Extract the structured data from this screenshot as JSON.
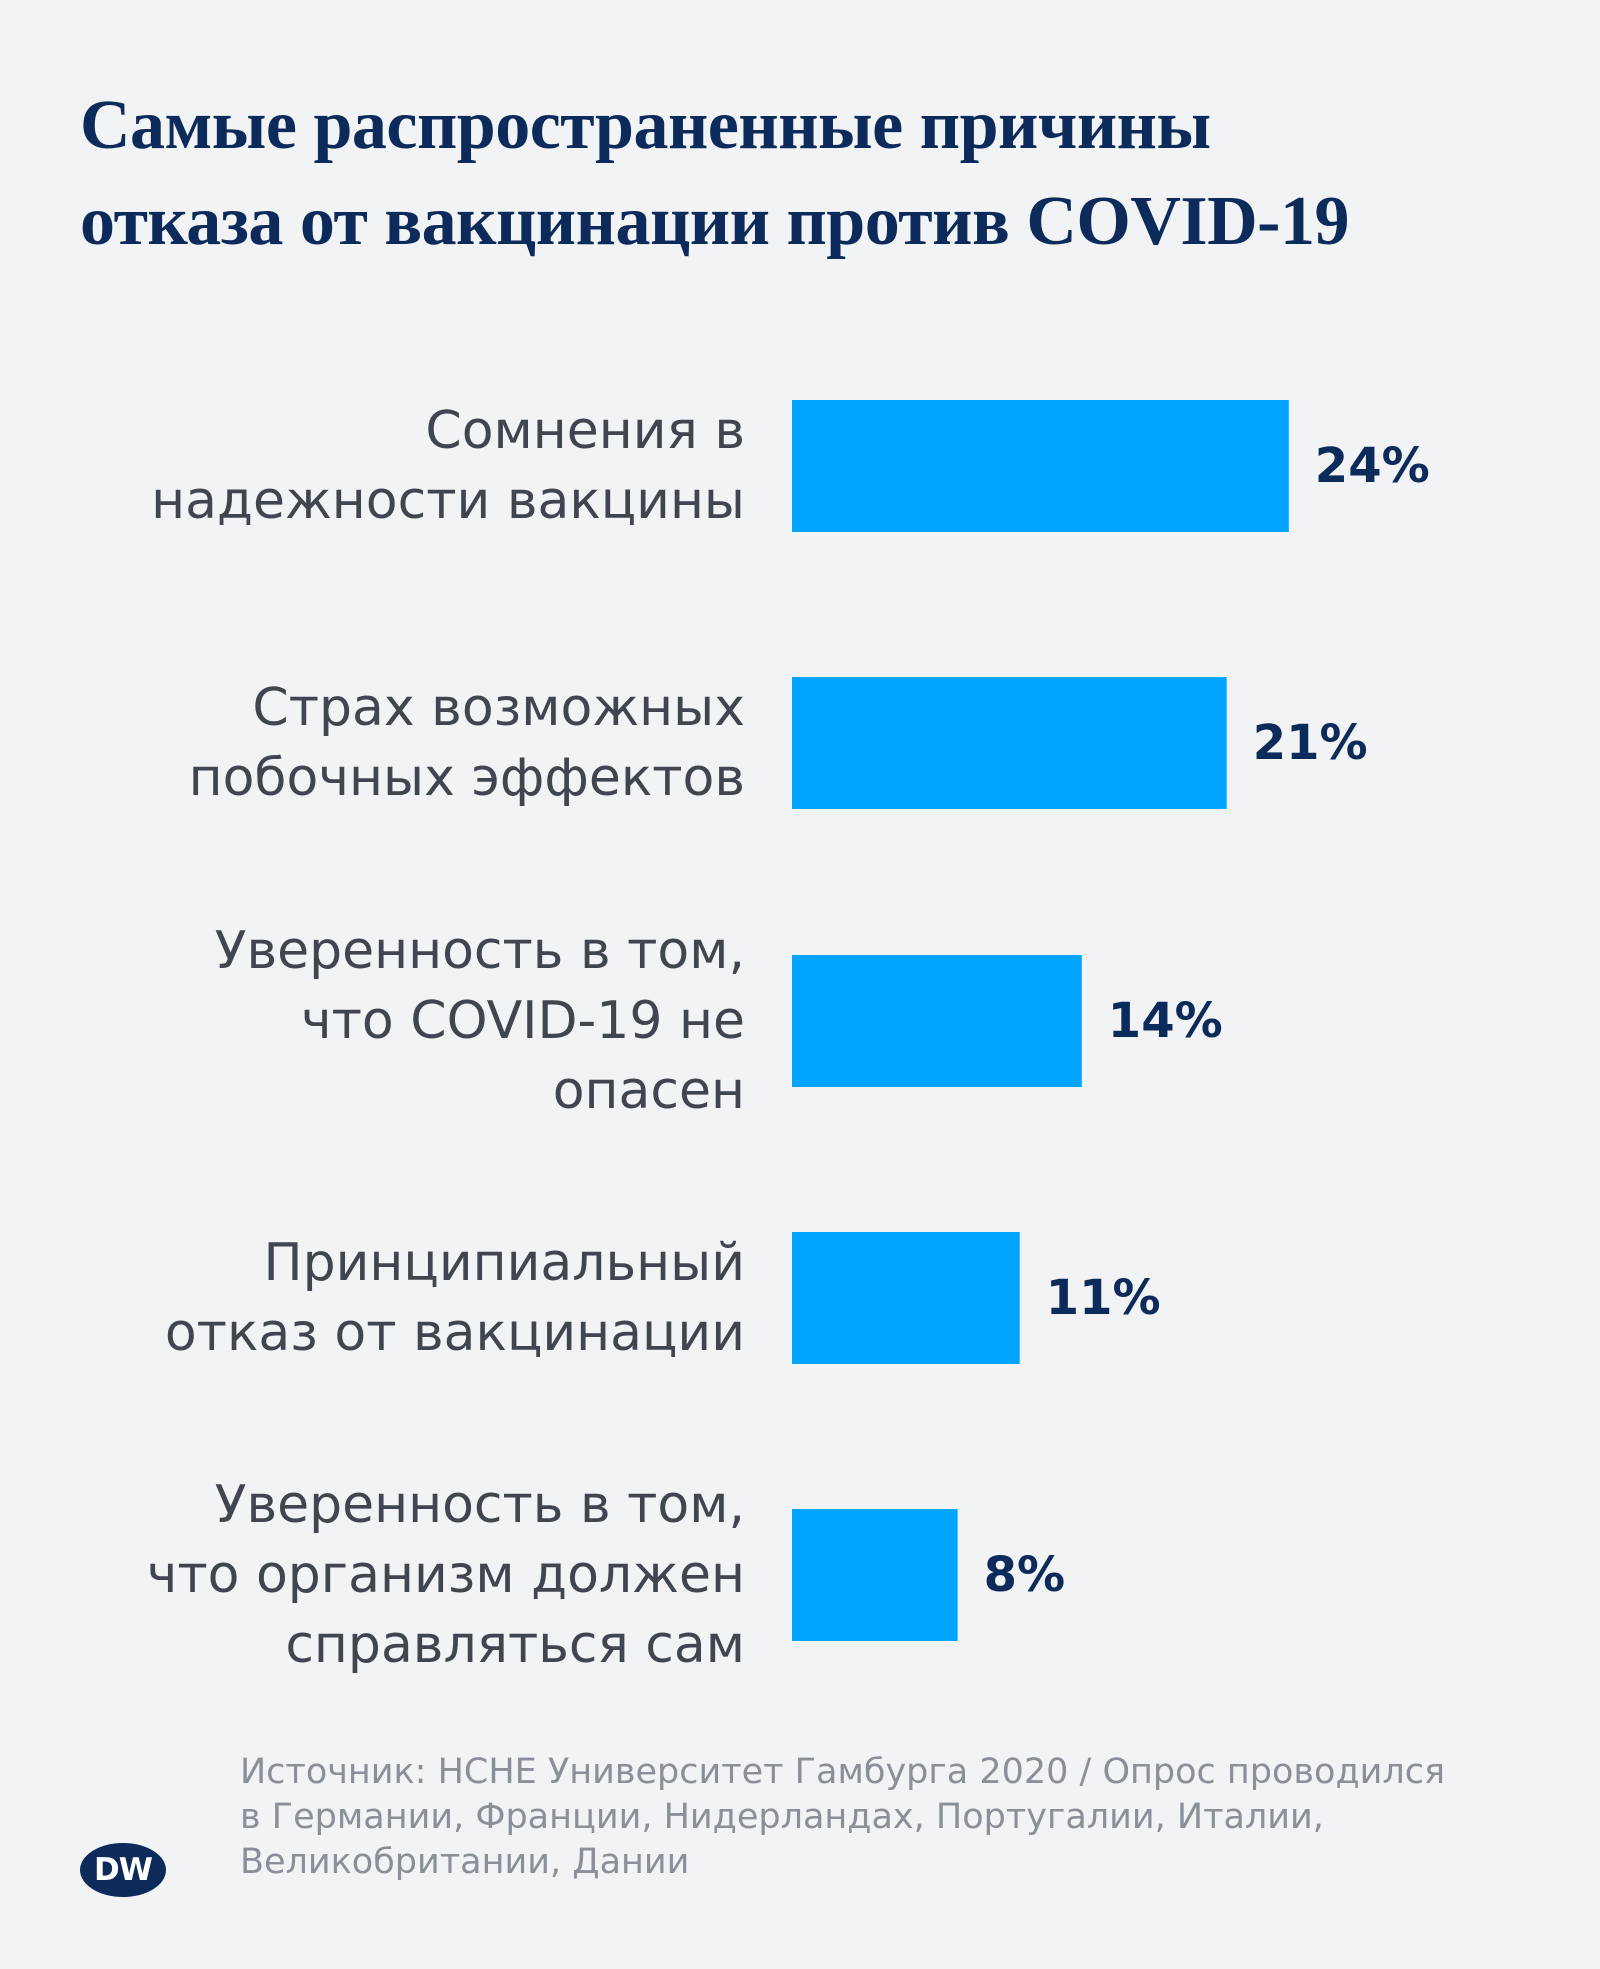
{
  "title_lines": [
    "Самые распространенные причины",
    "отказа от вакцинации против COVID-19"
  ],
  "chart_data": {
    "type": "bar",
    "orientation": "horizontal",
    "title": "Самые распространенные причины отказа от вакцинации против COVID-19",
    "categories": [
      "Сомнения в надежности вакцины",
      "Страх возможных побочных эффектов",
      "Уверенность в том, что COVID-19 не опасен",
      "Принципиальный отказ от вакцинации",
      "Уверенность в том, что организм должен справляться сам"
    ],
    "category_lines": [
      [
        "Сомнения в",
        "надежности вакцины"
      ],
      [
        "Страх возможных",
        "побочных эффектов"
      ],
      [
        "Уверенность в том,",
        "что COVID-19 не",
        "опасен"
      ],
      [
        "Принципиальный",
        "отказ от вакцинации"
      ],
      [
        "Уверенность в том,",
        "что организм должен",
        "справляться сам"
      ]
    ],
    "values": [
      24,
      21,
      14,
      11,
      8
    ],
    "value_labels": [
      "24%",
      "21%",
      "14%",
      "11%",
      "8%"
    ],
    "unit": "%",
    "grid": false,
    "legend": "none",
    "colors": {
      "bar": "#00a5ff",
      "value_text": "#0c2a5a",
      "category_text": "#3f4650",
      "background": "#f1f3f5"
    }
  },
  "source_lines": [
    "Источник: HCHE Университет Гамбурга 2020 / Опрос проводился",
    "в Германии, Франции, Нидерландах, Португалии, Италии,",
    "Великобритании, Дании"
  ],
  "logo": {
    "text": "DW",
    "icon": "dw-logo-icon"
  }
}
